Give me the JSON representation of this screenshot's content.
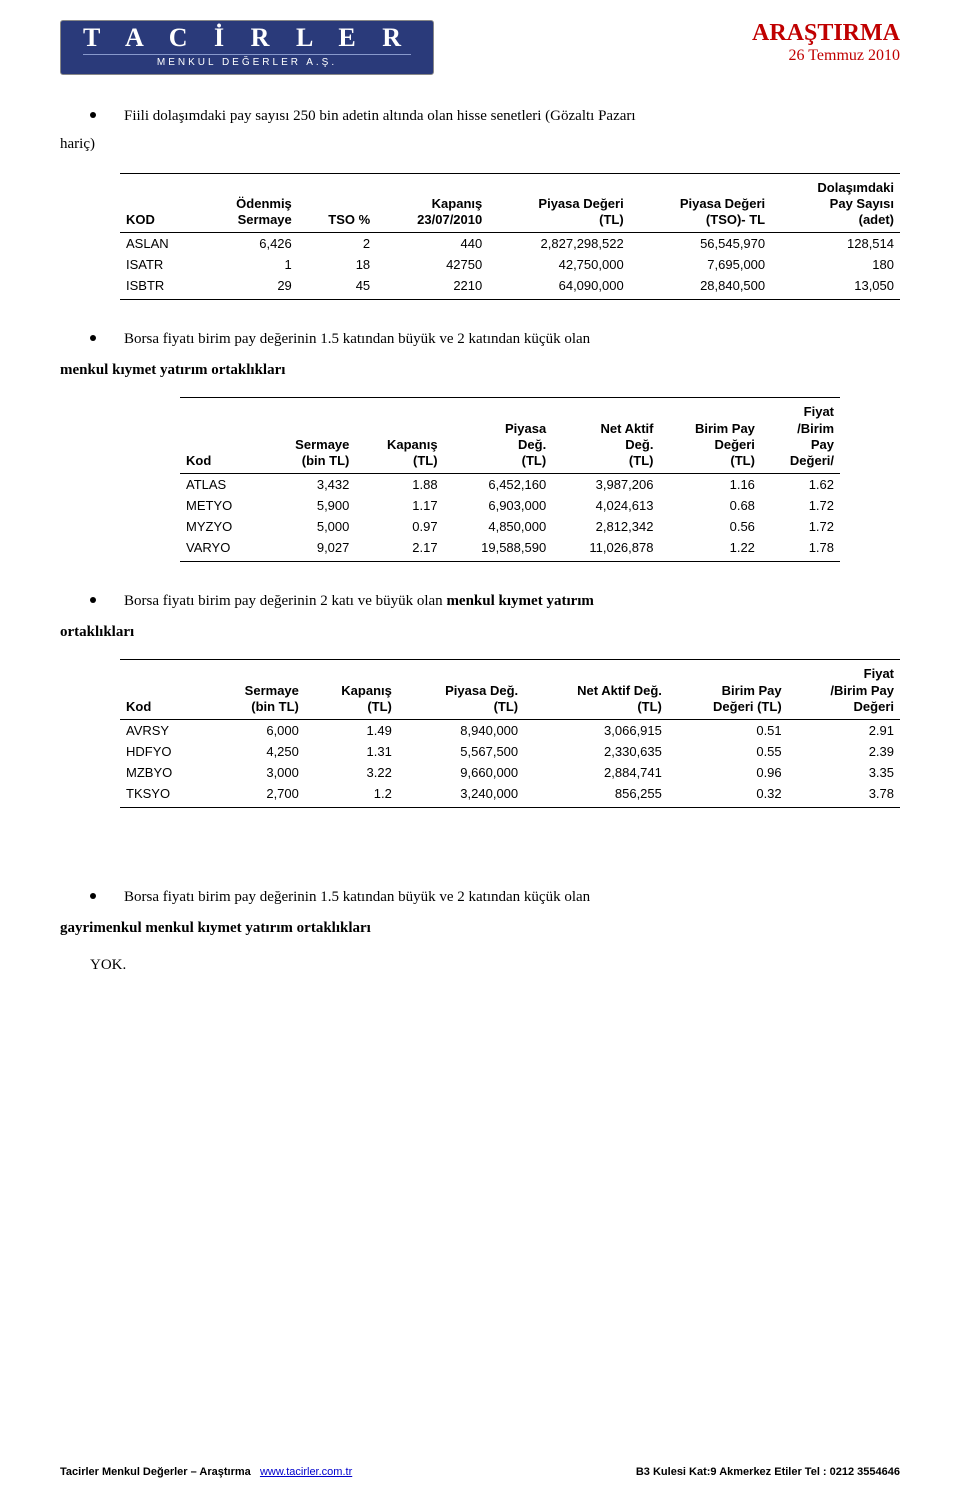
{
  "header": {
    "logo_main": "T A C İ R L E R",
    "logo_sub": "MENKUL DEĞERLER A.Ş.",
    "title": "ARAŞTIRMA",
    "date": "26 Temmuz 2010"
  },
  "bullets": {
    "b1": "Fiili dolaşımdaki pay sayısı 250 bin adetin altında olan hisse senetleri (Gözaltı Pazarı",
    "haric": "hariç)",
    "b2": "Borsa fiyatı birim pay değerinin 1.5 katından büyük ve 2 katından küçük olan",
    "b2_bold": "menkul kıymet yatırım ortaklıkları",
    "b3_pre": "Borsa fiyatı birim pay değerinin 2 katı ve büyük olan ",
    "b3_bold": "menkul kıymet yatırım",
    "b3_bold2": "ortaklıkları",
    "b4": "Borsa fiyatı birim pay değerinin 1.5 katından büyük ve 2 katından küçük olan",
    "b4_bold": "gayrimenkul menkul kıymet yatırım ortaklıkları",
    "yok": "YOK."
  },
  "table1": {
    "headers": {
      "c0": "KOD",
      "c1a": "Ödenmiş",
      "c1b": "Sermaye",
      "c2": "TSO %",
      "c3a": "Kapanış",
      "c3b": "23/07/2010",
      "c4a": "Piyasa Değeri",
      "c4b": "(TL)",
      "c5a": "Piyasa Değeri",
      "c5b": "(TSO)- TL",
      "c6a": "Dolaşımdaki",
      "c6b": "Pay Sayısı",
      "c6c": "(adet)"
    },
    "rows": [
      {
        "c0": "ASLAN",
        "c1": "6,426",
        "c2": "2",
        "c3": "440",
        "c4": "2,827,298,522",
        "c5": "56,545,970",
        "c6": "128,514"
      },
      {
        "c0": "ISATR",
        "c1": "1",
        "c2": "18",
        "c3": "42750",
        "c4": "42,750,000",
        "c5": "7,695,000",
        "c6": "180"
      },
      {
        "c0": "ISBTR",
        "c1": "29",
        "c2": "45",
        "c3": "2210",
        "c4": "64,090,000",
        "c5": "28,840,500",
        "c6": "13,050"
      }
    ]
  },
  "table2": {
    "headers": {
      "c0": "Kod",
      "c1a": "Sermaye",
      "c1b": "(bin TL)",
      "c2a": "Kapanış",
      "c2b": "(TL)",
      "c3a": "Piyasa",
      "c3b": "Değ.",
      "c3c": "(TL)",
      "c4a": "Net Aktif",
      "c4b": "Değ.",
      "c4c": "(TL)",
      "c5a": "Birim Pay",
      "c5b": "Değeri",
      "c5c": "(TL)",
      "c6a": "Fiyat",
      "c6b": "/Birim",
      "c6c": "Pay",
      "c6d": "Değeri/"
    },
    "rows": [
      {
        "c0": "ATLAS",
        "c1": "3,432",
        "c2": "1.88",
        "c3": "6,452,160",
        "c4": "3,987,206",
        "c5": "1.16",
        "c6": "1.62"
      },
      {
        "c0": "METYO",
        "c1": "5,900",
        "c2": "1.17",
        "c3": "6,903,000",
        "c4": "4,024,613",
        "c5": "0.68",
        "c6": "1.72"
      },
      {
        "c0": "MYZYO",
        "c1": "5,000",
        "c2": "0.97",
        "c3": "4,850,000",
        "c4": "2,812,342",
        "c5": "0.56",
        "c6": "1.72"
      },
      {
        "c0": "VARYO",
        "c1": "9,027",
        "c2": "2.17",
        "c3": "19,588,590",
        "c4": "11,026,878",
        "c5": "1.22",
        "c6": "1.78"
      }
    ]
  },
  "table3": {
    "headers": {
      "c0": "Kod",
      "c1a": "Sermaye",
      "c1b": "(bin TL)",
      "c2a": "Kapanış",
      "c2b": "(TL)",
      "c3a": "Piyasa Değ.",
      "c3b": "(TL)",
      "c4a": "Net Aktif Değ.",
      "c4b": "(TL)",
      "c5a": "Birim Pay",
      "c5b": "Değeri (TL)",
      "c6a": "Fiyat",
      "c6b": "/Birim Pay",
      "c6c": "Değeri"
    },
    "rows": [
      {
        "c0": "AVRSY",
        "c1": "6,000",
        "c2": "1.49",
        "c3": "8,940,000",
        "c4": "3,066,915",
        "c5": "0.51",
        "c6": "2.91"
      },
      {
        "c0": "HDFYO",
        "c1": "4,250",
        "c2": "1.31",
        "c3": "5,567,500",
        "c4": "2,330,635",
        "c5": "0.55",
        "c6": "2.39"
      },
      {
        "c0": "MZBYO",
        "c1": "3,000",
        "c2": "3.22",
        "c3": "9,660,000",
        "c4": "2,884,741",
        "c5": "0.96",
        "c6": "3.35"
      },
      {
        "c0": "TKSYO",
        "c1": "2,700",
        "c2": "1.2",
        "c3": "3,240,000",
        "c4": "856,255",
        "c5": "0.32",
        "c6": "3.78"
      }
    ]
  },
  "footer": {
    "left1": "Tacirler Menkul Değerler – Araştırma   ",
    "left_link": "www.tacirler.com.tr",
    "right": "B3 Kulesi Kat:9 Akmerkez Etiler Tel : 0212 3554646"
  },
  "style": {
    "accent": "#c00000",
    "logo_bg": "#2a3a7a"
  }
}
